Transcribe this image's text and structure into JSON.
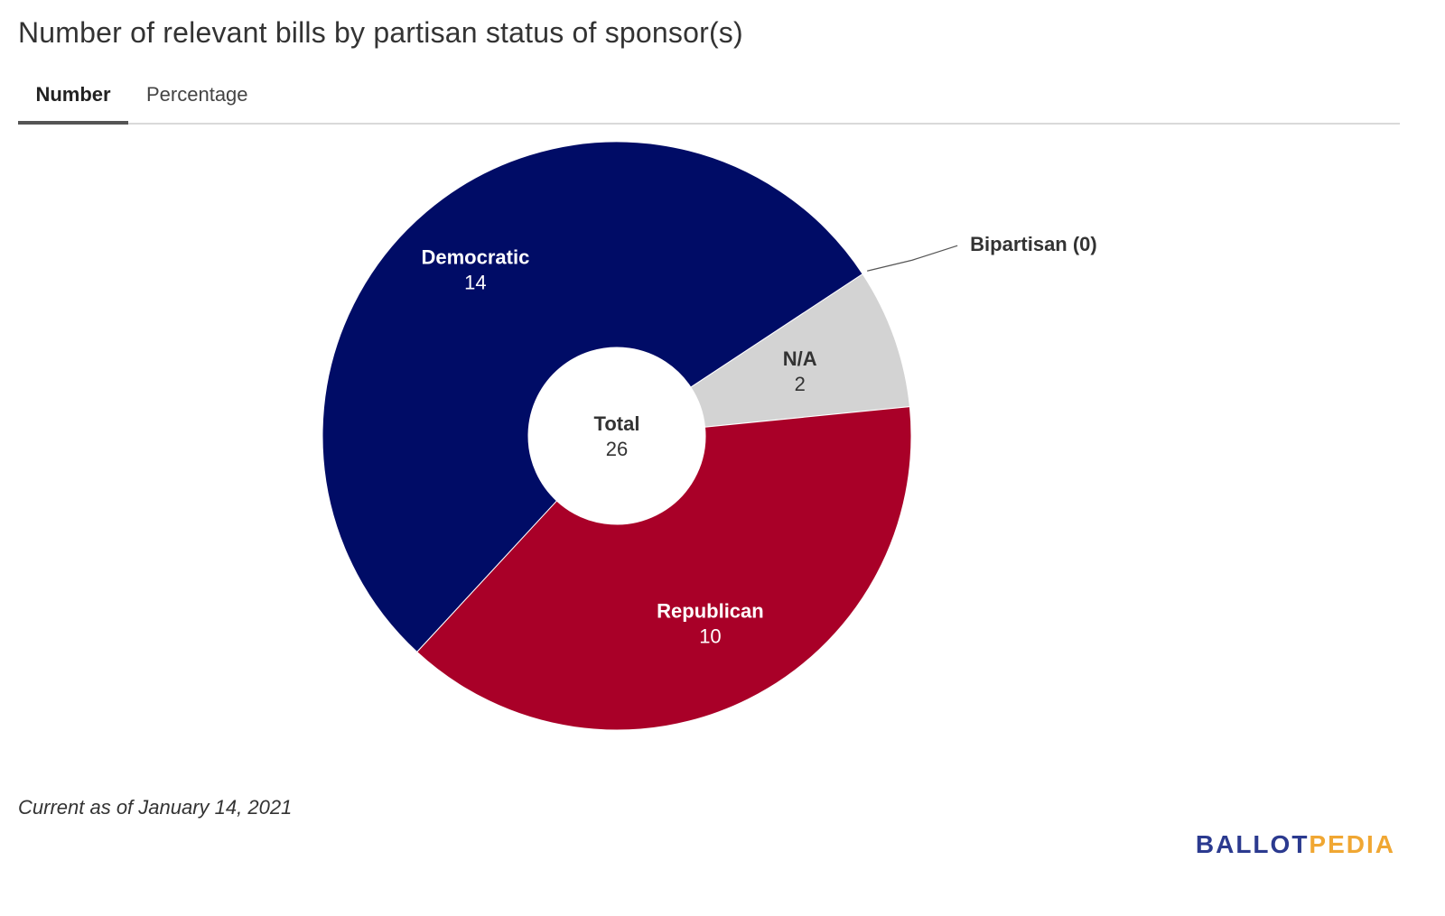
{
  "title": "Number of relevant bills by partisan status of sponsor(s)",
  "tabs": [
    {
      "label": "Number",
      "active": true
    },
    {
      "label": "Percentage",
      "active": false
    }
  ],
  "chart_data": {
    "type": "pie",
    "style": "donut",
    "center_label": {
      "name": "Total",
      "value": "26"
    },
    "slices": [
      {
        "name": "Democratic",
        "value": 14,
        "color": "#000c66",
        "label_color": "#ffffff"
      },
      {
        "name": "Bipartisan",
        "value": 0,
        "color": "#888888",
        "label_color": "#333333",
        "external_label": "Bipartisan (0)"
      },
      {
        "name": "N/A",
        "value": 2,
        "color": "#d3d3d3",
        "label_color": "#333333"
      },
      {
        "name": "Republican",
        "value": 10,
        "color": "#a90028",
        "label_color": "#ffffff"
      }
    ]
  },
  "footer": {
    "note": "Current as of January 14, 2021",
    "brand_part1": "BALLOT",
    "brand_part2": "PEDIA"
  }
}
